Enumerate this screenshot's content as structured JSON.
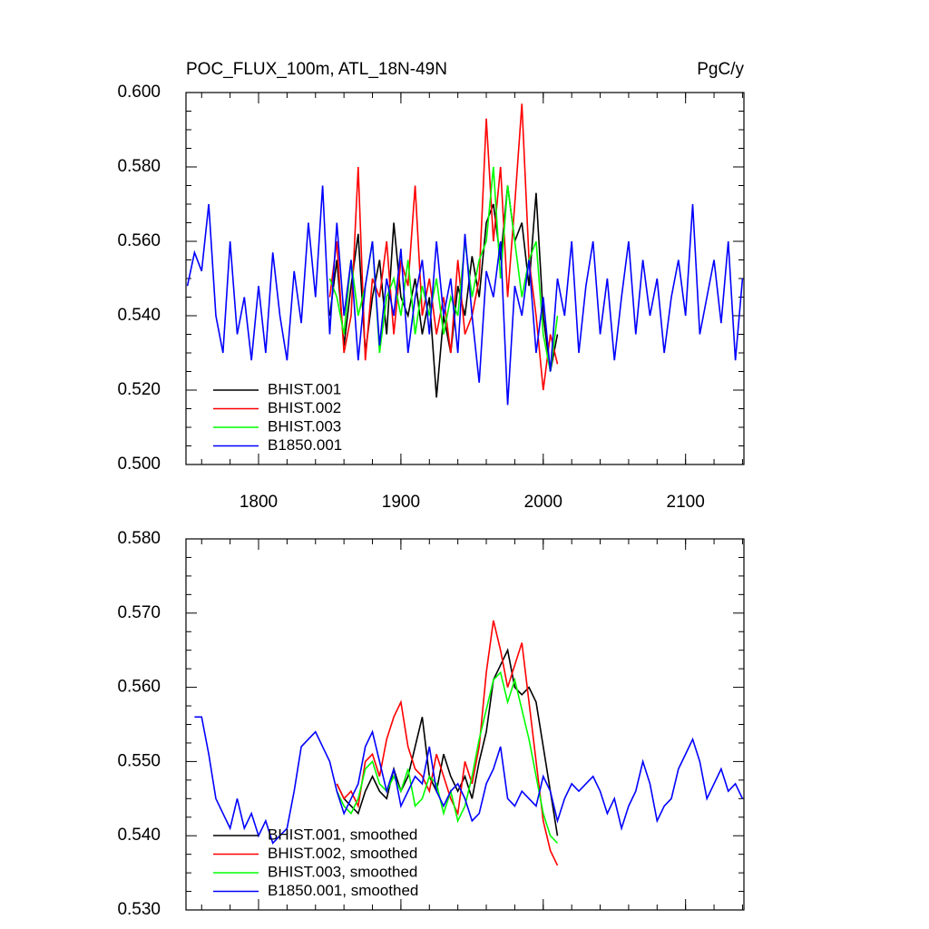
{
  "chart_data": [
    {
      "type": "line",
      "title": "POC_FLUX_100m, ATL_18N-49N",
      "units": "PgC/y",
      "x": [
        1750,
        1755,
        1760,
        1765,
        1770,
        1775,
        1780,
        1785,
        1790,
        1795,
        1800,
        1805,
        1810,
        1815,
        1820,
        1825,
        1830,
        1835,
        1840,
        1845,
        1850,
        1855,
        1860,
        1865,
        1870,
        1875,
        1880,
        1885,
        1890,
        1895,
        1900,
        1905,
        1910,
        1915,
        1920,
        1925,
        1930,
        1935,
        1940,
        1945,
        1950,
        1955,
        1960,
        1965,
        1970,
        1975,
        1980,
        1985,
        1990,
        1995,
        2000,
        2005,
        2010,
        2015,
        2020,
        2025,
        2030,
        2035,
        2040,
        2045,
        2050,
        2055,
        2060,
        2065,
        2070,
        2075,
        2080,
        2085,
        2090,
        2095,
        2100,
        2105,
        2110,
        2115,
        2120,
        2125,
        2130,
        2135,
        2140
      ],
      "xlim": [
        1749,
        2141
      ],
      "xticks": [
        1800,
        1900,
        2000,
        2100
      ],
      "xtick_labels": true,
      "ylim": [
        0.5,
        0.6
      ],
      "yticks": [
        {
          "value": 0.5,
          "label": "0.500"
        },
        {
          "value": 0.52,
          "label": "0.520"
        },
        {
          "value": 0.54,
          "label": "0.540"
        },
        {
          "value": 0.56,
          "label": "0.560"
        },
        {
          "value": 0.58,
          "label": "0.580"
        },
        {
          "value": 0.6,
          "label": "0.600"
        }
      ],
      "legend": "lower left",
      "series": [
        {
          "name": "BHIST.001",
          "color": "#000000",
          "values": [
            null,
            null,
            null,
            null,
            null,
            null,
            null,
            null,
            null,
            null,
            null,
            null,
            null,
            null,
            null,
            null,
            null,
            null,
            null,
            null,
            0.54,
            0.555,
            0.532,
            0.548,
            0.562,
            0.53,
            0.545,
            0.555,
            0.535,
            0.565,
            0.545,
            0.54,
            0.55,
            0.535,
            0.545,
            0.518,
            0.54,
            0.53,
            0.548,
            0.54,
            0.556,
            0.545,
            0.565,
            0.57,
            0.555,
            0.575,
            0.56,
            0.565,
            0.548,
            0.573,
            0.54,
            0.525,
            0.535,
            null,
            null,
            null,
            null,
            null,
            null,
            null,
            null,
            null,
            null,
            null,
            null,
            null,
            null,
            null,
            null,
            null,
            null,
            null,
            null,
            null,
            null,
            null,
            null,
            null,
            null
          ]
        },
        {
          "name": "BHIST.002",
          "color": "#ff0000",
          "values": [
            null,
            null,
            null,
            null,
            null,
            null,
            null,
            null,
            null,
            null,
            null,
            null,
            null,
            null,
            null,
            null,
            null,
            null,
            null,
            null,
            0.545,
            0.56,
            0.53,
            0.54,
            0.58,
            0.528,
            0.55,
            0.545,
            0.56,
            0.535,
            0.555,
            0.548,
            0.575,
            0.54,
            0.55,
            0.535,
            0.545,
            0.53,
            0.555,
            0.535,
            0.54,
            0.55,
            0.593,
            0.56,
            0.58,
            0.545,
            0.57,
            0.597,
            0.555,
            0.54,
            0.52,
            0.535,
            0.527,
            null,
            null,
            null,
            null,
            null,
            null,
            null,
            null,
            null,
            null,
            null,
            null,
            null,
            null,
            null,
            null,
            null,
            null,
            null,
            null,
            null,
            null,
            null,
            null,
            null,
            null
          ]
        },
        {
          "name": "BHIST.003",
          "color": "#00ff00",
          "values": [
            null,
            null,
            null,
            null,
            null,
            null,
            null,
            null,
            null,
            null,
            null,
            null,
            null,
            null,
            null,
            null,
            null,
            null,
            null,
            null,
            0.55,
            0.545,
            0.535,
            0.555,
            0.54,
            0.548,
            0.56,
            0.53,
            0.545,
            0.55,
            0.54,
            0.555,
            0.535,
            0.548,
            0.54,
            0.55,
            0.535,
            0.545,
            0.54,
            0.56,
            0.545,
            0.555,
            0.56,
            0.58,
            0.55,
            0.575,
            0.56,
            0.545,
            0.555,
            0.56,
            0.535,
            0.525,
            0.54,
            null,
            null,
            null,
            null,
            null,
            null,
            null,
            null,
            null,
            null,
            null,
            null,
            null,
            null,
            null,
            null,
            null,
            null,
            null,
            null,
            null,
            null,
            null,
            null,
            null,
            null
          ]
        },
        {
          "name": "B1850.001",
          "color": "#0000ff",
          "values": [
            0.548,
            0.557,
            0.552,
            0.57,
            0.54,
            0.53,
            0.56,
            0.535,
            0.545,
            0.528,
            0.548,
            0.53,
            0.557,
            0.54,
            0.528,
            0.552,
            0.538,
            0.565,
            0.545,
            0.575,
            0.535,
            0.565,
            0.54,
            0.555,
            0.528,
            0.548,
            0.56,
            0.532,
            0.55,
            0.54,
            0.558,
            0.53,
            0.545,
            0.555,
            0.535,
            0.56,
            0.54,
            0.55,
            0.53,
            0.562,
            0.54,
            0.522,
            0.552,
            0.545,
            0.56,
            0.516,
            0.548,
            0.54,
            0.555,
            0.53,
            0.545,
            0.525,
            0.55,
            0.54,
            0.56,
            0.53,
            0.548,
            0.56,
            0.535,
            0.55,
            0.528,
            0.545,
            0.56,
            0.535,
            0.555,
            0.54,
            0.55,
            0.53,
            0.545,
            0.555,
            0.54,
            0.57,
            0.535,
            0.545,
            0.555,
            0.538,
            0.56,
            0.528,
            0.55
          ]
        }
      ]
    },
    {
      "type": "line",
      "x": [
        1750,
        1755,
        1760,
        1765,
        1770,
        1775,
        1780,
        1785,
        1790,
        1795,
        1800,
        1805,
        1810,
        1815,
        1820,
        1825,
        1830,
        1835,
        1840,
        1845,
        1850,
        1855,
        1860,
        1865,
        1870,
        1875,
        1880,
        1885,
        1890,
        1895,
        1900,
        1905,
        1910,
        1915,
        1920,
        1925,
        1930,
        1935,
        1940,
        1945,
        1950,
        1955,
        1960,
        1965,
        1970,
        1975,
        1980,
        1985,
        1990,
        1995,
        2000,
        2005,
        2010,
        2015,
        2020,
        2025,
        2030,
        2035,
        2040,
        2045,
        2050,
        2055,
        2060,
        2065,
        2070,
        2075,
        2080,
        2085,
        2090,
        2095,
        2100,
        2105,
        2110,
        2115,
        2120,
        2125,
        2130,
        2135,
        2140
      ],
      "xlim": [
        1749,
        2141
      ],
      "xticks": [
        1800,
        1900,
        2000,
        2100
      ],
      "xtick_labels": false,
      "ylim": [
        0.53,
        0.58
      ],
      "yticks": [
        {
          "value": 0.53,
          "label": "0.530"
        },
        {
          "value": 0.54,
          "label": "0.540"
        },
        {
          "value": 0.55,
          "label": "0.550"
        },
        {
          "value": 0.56,
          "label": "0.560"
        },
        {
          "value": 0.57,
          "label": "0.570"
        },
        {
          "value": 0.58,
          "label": "0.580"
        }
      ],
      "legend": "lower left",
      "series": [
        {
          "name": "BHIST.001, smoothed",
          "color": "#000000",
          "values": [
            null,
            null,
            null,
            null,
            null,
            null,
            null,
            null,
            null,
            null,
            null,
            null,
            null,
            null,
            null,
            null,
            null,
            null,
            null,
            null,
            null,
            0.547,
            0.545,
            0.544,
            0.543,
            0.546,
            0.548,
            0.546,
            0.545,
            0.549,
            0.546,
            0.548,
            0.552,
            0.556,
            0.548,
            0.546,
            0.551,
            0.548,
            0.546,
            0.548,
            0.545,
            0.55,
            0.554,
            0.561,
            0.563,
            0.565,
            0.56,
            0.559,
            0.56,
            0.558,
            0.552,
            0.546,
            0.54,
            null,
            null,
            null,
            null,
            null,
            null,
            null,
            null,
            null,
            null,
            null,
            null,
            null,
            null,
            null,
            null,
            null,
            null,
            null,
            null,
            null,
            null,
            null,
            null,
            null,
            null
          ]
        },
        {
          "name": "BHIST.002, smoothed",
          "color": "#ff0000",
          "values": [
            null,
            null,
            null,
            null,
            null,
            null,
            null,
            null,
            null,
            null,
            null,
            null,
            null,
            null,
            null,
            null,
            null,
            null,
            null,
            null,
            null,
            0.547,
            0.545,
            0.546,
            0.544,
            0.55,
            0.551,
            0.548,
            0.553,
            0.556,
            0.558,
            0.552,
            0.549,
            0.548,
            0.546,
            0.551,
            0.548,
            0.545,
            0.543,
            0.55,
            0.547,
            0.552,
            0.562,
            0.569,
            0.565,
            0.56,
            0.563,
            0.566,
            0.558,
            0.55,
            0.542,
            0.538,
            0.536,
            null,
            null,
            null,
            null,
            null,
            null,
            null,
            null,
            null,
            null,
            null,
            null,
            null,
            null,
            null,
            null,
            null,
            null,
            null,
            null,
            null,
            null,
            null,
            null,
            null,
            null
          ]
        },
        {
          "name": "BHIST.003, smoothed",
          "color": "#00ff00",
          "values": [
            null,
            null,
            null,
            null,
            null,
            null,
            null,
            null,
            null,
            null,
            null,
            null,
            null,
            null,
            null,
            null,
            null,
            null,
            null,
            null,
            null,
            0.546,
            0.544,
            0.543,
            0.545,
            0.549,
            0.55,
            0.547,
            0.546,
            0.548,
            0.546,
            0.549,
            0.544,
            0.545,
            0.548,
            0.547,
            0.543,
            0.546,
            0.542,
            0.544,
            0.548,
            0.553,
            0.557,
            0.561,
            0.562,
            0.558,
            0.561,
            0.557,
            0.553,
            0.548,
            0.543,
            0.54,
            0.539,
            null,
            null,
            null,
            null,
            null,
            null,
            null,
            null,
            null,
            null,
            null,
            null,
            null,
            null,
            null,
            null,
            null,
            null,
            null,
            null,
            null,
            null,
            null,
            null,
            null,
            null
          ]
        },
        {
          "name": "B1850.001, smoothed",
          "color": "#0000ff",
          "values": [
            null,
            0.556,
            0.556,
            0.551,
            0.545,
            0.543,
            0.541,
            0.545,
            0.541,
            0.543,
            0.54,
            0.542,
            0.539,
            0.54,
            0.541,
            0.546,
            0.552,
            0.553,
            0.554,
            0.552,
            0.55,
            0.546,
            0.543,
            0.545,
            0.547,
            0.552,
            0.554,
            0.55,
            0.546,
            0.549,
            0.544,
            0.546,
            0.548,
            0.547,
            0.552,
            0.546,
            0.544,
            0.546,
            0.547,
            0.545,
            0.542,
            0.543,
            0.547,
            0.549,
            0.552,
            0.545,
            0.544,
            0.546,
            0.545,
            0.544,
            0.548,
            0.546,
            0.542,
            0.545,
            0.547,
            0.546,
            0.547,
            0.548,
            0.546,
            0.543,
            0.545,
            0.541,
            0.544,
            0.546,
            0.55,
            0.547,
            0.542,
            0.544,
            0.545,
            0.549,
            0.551,
            0.553,
            0.55,
            0.545,
            0.547,
            0.549,
            0.546,
            0.547,
            0.545
          ]
        }
      ]
    }
  ]
}
